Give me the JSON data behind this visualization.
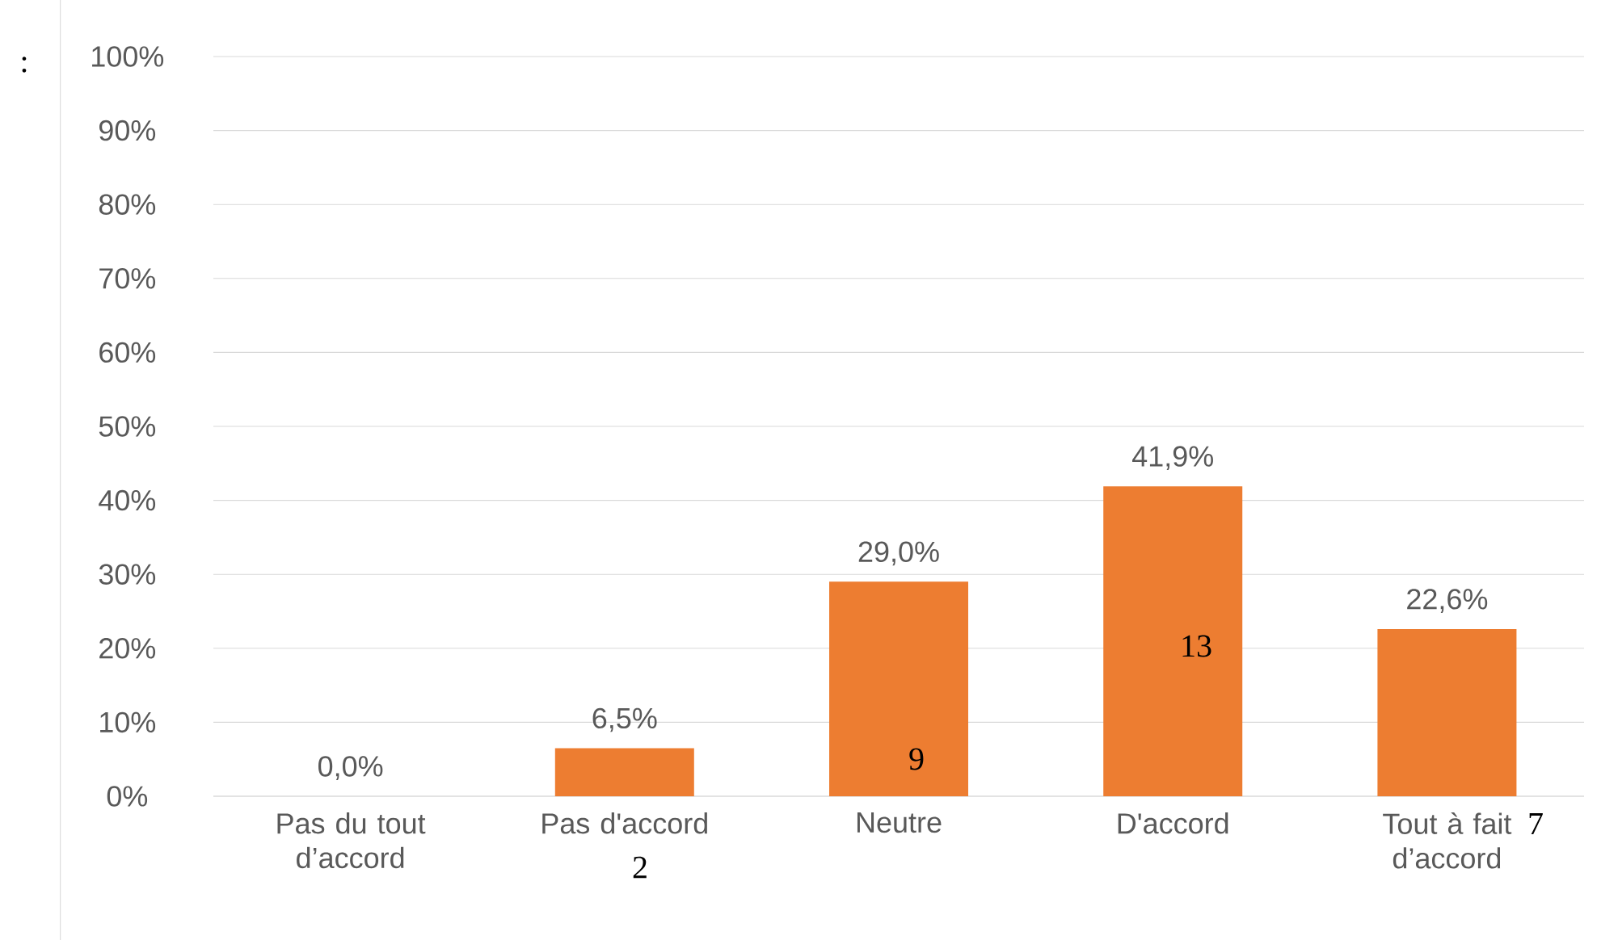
{
  "chart_data": {
    "type": "bar",
    "categories": [
      "Pas du tout d’accord",
      "Pas d'accord",
      "Neutre",
      "D'accord",
      "Tout à fait d’accord"
    ],
    "values": [
      0.0,
      6.5,
      29.0,
      41.9,
      22.6
    ],
    "value_labels": [
      "0,0%",
      "6,5%",
      "29,0%",
      "41,9%",
      "22,6%"
    ],
    "color": "#ed7d31",
    "ylim": [
      0,
      100
    ],
    "yticks": [
      {
        "value": 0,
        "label": "0%"
      },
      {
        "value": 10,
        "label": "10%"
      },
      {
        "value": 20,
        "label": "20%"
      },
      {
        "value": 30,
        "label": "30%"
      },
      {
        "value": 40,
        "label": "40%"
      },
      {
        "value": 50,
        "label": "50%"
      },
      {
        "value": 60,
        "label": "60%"
      },
      {
        "value": 70,
        "label": "70%"
      },
      {
        "value": 80,
        "label": "80%"
      },
      {
        "value": 90,
        "label": "90%"
      },
      {
        "value": 100,
        "label": "100%"
      }
    ],
    "grid": "y",
    "annotations": [
      ":",
      "2",
      "9",
      "13",
      "7"
    ]
  }
}
